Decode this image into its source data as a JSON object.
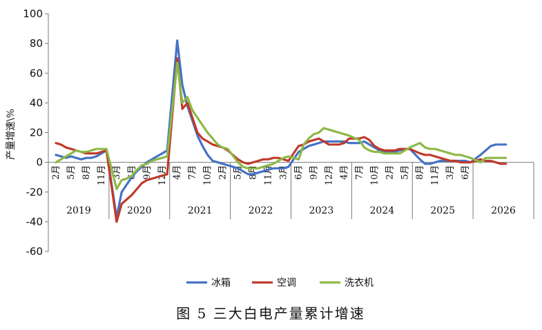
{
  "chart_data": {
    "type": "line",
    "title": "",
    "caption": "图 5  三大白电产量累计增速",
    "ylabel": "产量增速\\%",
    "ylim": [
      -60,
      100
    ],
    "yticks": [
      "-60",
      "-40",
      "-20",
      "0",
      "20",
      "40",
      "60",
      "80",
      "100"
    ],
    "month_ticks": [
      "2月",
      "5月",
      "8月",
      "11月",
      "3月",
      "6月",
      "9月",
      "12月",
      "4月",
      "7月",
      "10月",
      "2月",
      "5月",
      "8月",
      "11月",
      "3月",
      "6月",
      "9月",
      "12月",
      "4月",
      "7月",
      "10月",
      "2月",
      "5月",
      "8月",
      "11月",
      "3月",
      "6月"
    ],
    "years": [
      "2019",
      "2020",
      "2021",
      "2022",
      "2023",
      "2024",
      "2025",
      "2026"
    ],
    "legend_position": "bottom",
    "grid": false,
    "series": [
      {
        "name": "冰箱",
        "color": "#4472C4",
        "values": [
          [
            "2019-02",
            5
          ],
          [
            "2019-03",
            4
          ],
          [
            "2019-04",
            3
          ],
          [
            "2019-05",
            4
          ],
          [
            "2019-06",
            3
          ],
          [
            "2019-07",
            2
          ],
          [
            "2019-08",
            3
          ],
          [
            "2019-09",
            3
          ],
          [
            "2019-10",
            4
          ],
          [
            "2019-11",
            6
          ],
          [
            "2019-12",
            8
          ],
          [
            "2020-02",
            -37
          ],
          [
            "2020-03",
            -20
          ],
          [
            "2020-04",
            -15
          ],
          [
            "2020-05",
            -10
          ],
          [
            "2020-06",
            -6
          ],
          [
            "2020-07",
            -3
          ],
          [
            "2020-08",
            0
          ],
          [
            "2020-09",
            2
          ],
          [
            "2020-10",
            4
          ],
          [
            "2020-11",
            6
          ],
          [
            "2020-12",
            8
          ],
          [
            "2021-02",
            82
          ],
          [
            "2021-03",
            52
          ],
          [
            "2021-04",
            38
          ],
          [
            "2021-05",
            28
          ],
          [
            "2021-06",
            18
          ],
          [
            "2021-07",
            11
          ],
          [
            "2021-08",
            5
          ],
          [
            "2021-09",
            1
          ],
          [
            "2021-10",
            0
          ],
          [
            "2021-11",
            -1
          ],
          [
            "2021-12",
            -2
          ],
          [
            "2022-02",
            -4
          ],
          [
            "2022-03",
            -6
          ],
          [
            "2022-04",
            -8
          ],
          [
            "2022-05",
            -8
          ],
          [
            "2022-06",
            -7
          ],
          [
            "2022-07",
            -6
          ],
          [
            "2022-08",
            -5
          ],
          [
            "2022-09",
            -4
          ],
          [
            "2022-10",
            -4
          ],
          [
            "2022-11",
            -4
          ],
          [
            "2022-12",
            -3
          ],
          [
            "2023-02",
            7
          ],
          [
            "2023-03",
            9
          ],
          [
            "2023-04",
            11
          ],
          [
            "2023-05",
            12
          ],
          [
            "2023-06",
            13
          ],
          [
            "2023-07",
            14
          ],
          [
            "2023-08",
            14
          ],
          [
            "2023-09",
            14
          ],
          [
            "2023-10",
            14
          ],
          [
            "2023-11",
            14
          ],
          [
            "2023-12",
            13
          ],
          [
            "2024-02",
            13
          ],
          [
            "2024-03",
            14
          ],
          [
            "2024-04",
            12
          ],
          [
            "2024-05",
            10
          ],
          [
            "2024-06",
            8
          ],
          [
            "2024-07",
            7
          ],
          [
            "2024-08",
            7
          ],
          [
            "2024-09",
            7
          ],
          [
            "2024-10",
            8
          ],
          [
            "2024-11",
            9
          ],
          [
            "2024-12",
            9
          ],
          [
            "2025-02",
            2
          ],
          [
            "2025-03",
            -1
          ],
          [
            "2025-04",
            -1
          ],
          [
            "2025-05",
            0
          ],
          [
            "2025-06",
            1
          ],
          [
            "2025-07",
            1
          ],
          [
            "2025-08",
            1
          ],
          [
            "2025-09",
            1
          ],
          [
            "2025-10",
            1
          ],
          [
            "2025-11",
            1
          ],
          [
            "2025-12",
            0
          ],
          [
            "2026-02",
            5
          ],
          [
            "2026-03",
            8
          ],
          [
            "2026-04",
            11
          ],
          [
            "2026-05",
            12
          ],
          [
            "2026-06",
            12
          ],
          [
            "2026-07",
            12
          ]
        ]
      },
      {
        "name": "空调",
        "color": "#C0392B",
        "values": [
          [
            "2019-02",
            13
          ],
          [
            "2019-03",
            12
          ],
          [
            "2019-04",
            10
          ],
          [
            "2019-05",
            9
          ],
          [
            "2019-06",
            8
          ],
          [
            "2019-07",
            7
          ],
          [
            "2019-08",
            6
          ],
          [
            "2019-09",
            6
          ],
          [
            "2019-10",
            6
          ],
          [
            "2019-11",
            7
          ],
          [
            "2019-12",
            8
          ],
          [
            "2020-02",
            -40
          ],
          [
            "2020-03",
            -28
          ],
          [
            "2020-04",
            -25
          ],
          [
            "2020-05",
            -22
          ],
          [
            "2020-06",
            -18
          ],
          [
            "2020-07",
            -14
          ],
          [
            "2020-08",
            -12
          ],
          [
            "2020-09",
            -11
          ],
          [
            "2020-10",
            -10
          ],
          [
            "2020-11",
            -9
          ],
          [
            "2020-12",
            -8
          ],
          [
            "2021-02",
            70
          ],
          [
            "2021-03",
            36
          ],
          [
            "2021-04",
            40
          ],
          [
            "2021-05",
            30
          ],
          [
            "2021-06",
            20
          ],
          [
            "2021-07",
            16
          ],
          [
            "2021-08",
            14
          ],
          [
            "2021-09",
            12
          ],
          [
            "2021-10",
            11
          ],
          [
            "2021-11",
            10
          ],
          [
            "2021-12",
            8
          ],
          [
            "2022-02",
            2
          ],
          [
            "2022-03",
            0
          ],
          [
            "2022-04",
            -1
          ],
          [
            "2022-05",
            0
          ],
          [
            "2022-06",
            1
          ],
          [
            "2022-07",
            2
          ],
          [
            "2022-08",
            2
          ],
          [
            "2022-09",
            3
          ],
          [
            "2022-10",
            3
          ],
          [
            "2022-11",
            2
          ],
          [
            "2022-12",
            1
          ],
          [
            "2023-02",
            11
          ],
          [
            "2023-03",
            12
          ],
          [
            "2023-04",
            14
          ],
          [
            "2023-05",
            15
          ],
          [
            "2023-06",
            16
          ],
          [
            "2023-07",
            14
          ],
          [
            "2023-08",
            12
          ],
          [
            "2023-09",
            12
          ],
          [
            "2023-10",
            12
          ],
          [
            "2023-11",
            13
          ],
          [
            "2023-12",
            16
          ],
          [
            "2024-02",
            16
          ],
          [
            "2024-03",
            17
          ],
          [
            "2024-04",
            15
          ],
          [
            "2024-05",
            11
          ],
          [
            "2024-06",
            9
          ],
          [
            "2024-07",
            8
          ],
          [
            "2024-08",
            8
          ],
          [
            "2024-09",
            8
          ],
          [
            "2024-10",
            9
          ],
          [
            "2024-11",
            9
          ],
          [
            "2024-12",
            9
          ],
          [
            "2025-02",
            6
          ],
          [
            "2025-03",
            5
          ],
          [
            "2025-04",
            5
          ],
          [
            "2025-05",
            4
          ],
          [
            "2025-06",
            3
          ],
          [
            "2025-07",
            2
          ],
          [
            "2025-08",
            1
          ],
          [
            "2025-09",
            1
          ],
          [
            "2025-10",
            0
          ],
          [
            "2025-11",
            0
          ],
          [
            "2025-12",
            0
          ],
          [
            "2026-02",
            2
          ],
          [
            "2026-03",
            1
          ],
          [
            "2026-04",
            1
          ],
          [
            "2026-05",
            0
          ],
          [
            "2026-06",
            -1
          ],
          [
            "2026-07",
            -1
          ]
        ]
      },
      {
        "name": "洗衣机",
        "color": "#8DB846",
        "values": [
          [
            "2019-02",
            0
          ],
          [
            "2019-03",
            2
          ],
          [
            "2019-04",
            4
          ],
          [
            "2019-05",
            6
          ],
          [
            "2019-06",
            8
          ],
          [
            "2019-07",
            7
          ],
          [
            "2019-08",
            7
          ],
          [
            "2019-09",
            8
          ],
          [
            "2019-10",
            9
          ],
          [
            "2019-11",
            9
          ],
          [
            "2019-12",
            9
          ],
          [
            "2020-02",
            -18
          ],
          [
            "2020-03",
            -12
          ],
          [
            "2020-04",
            -11
          ],
          [
            "2020-05",
            -9
          ],
          [
            "2020-06",
            -5
          ],
          [
            "2020-07",
            -2
          ],
          [
            "2020-08",
            -1
          ],
          [
            "2020-09",
            1
          ],
          [
            "2020-10",
            2
          ],
          [
            "2020-11",
            3
          ],
          [
            "2020-12",
            4
          ],
          [
            "2021-02",
            67
          ],
          [
            "2021-03",
            40
          ],
          [
            "2021-04",
            44
          ],
          [
            "2021-05",
            35
          ],
          [
            "2021-06",
            30
          ],
          [
            "2021-07",
            25
          ],
          [
            "2021-08",
            20
          ],
          [
            "2021-09",
            16
          ],
          [
            "2021-10",
            12
          ],
          [
            "2021-11",
            10
          ],
          [
            "2021-12",
            9
          ],
          [
            "2022-02",
            0
          ],
          [
            "2022-03",
            -3
          ],
          [
            "2022-04",
            -4
          ],
          [
            "2022-05",
            -4
          ],
          [
            "2022-06",
            -4
          ],
          [
            "2022-07",
            -3
          ],
          [
            "2022-08",
            -2
          ],
          [
            "2022-09",
            -1
          ],
          [
            "2022-10",
            1
          ],
          [
            "2022-11",
            3
          ],
          [
            "2022-12",
            4
          ],
          [
            "2023-02",
            2
          ],
          [
            "2023-03",
            12
          ],
          [
            "2023-04",
            16
          ],
          [
            "2023-05",
            19
          ],
          [
            "2023-06",
            20
          ],
          [
            "2023-07",
            23
          ],
          [
            "2023-08",
            22
          ],
          [
            "2023-09",
            21
          ],
          [
            "2023-10",
            20
          ],
          [
            "2023-11",
            19
          ],
          [
            "2023-12",
            18
          ],
          [
            "2024-02",
            15
          ],
          [
            "2024-03",
            10
          ],
          [
            "2024-04",
            8
          ],
          [
            "2024-05",
            7
          ],
          [
            "2024-06",
            7
          ],
          [
            "2024-07",
            6
          ],
          [
            "2024-08",
            6
          ],
          [
            "2024-09",
            6
          ],
          [
            "2024-10",
            6
          ],
          [
            "2024-11",
            8
          ],
          [
            "2024-12",
            10
          ],
          [
            "2025-02",
            13
          ],
          [
            "2025-03",
            10
          ],
          [
            "2025-04",
            9
          ],
          [
            "2025-05",
            9
          ],
          [
            "2025-06",
            8
          ],
          [
            "2025-07",
            7
          ],
          [
            "2025-08",
            6
          ],
          [
            "2025-09",
            5
          ],
          [
            "2025-10",
            5
          ],
          [
            "2025-11",
            4
          ],
          [
            "2025-12",
            3
          ],
          [
            "2026-02",
            0
          ],
          [
            "2026-03",
            3
          ],
          [
            "2026-04",
            3
          ],
          [
            "2026-05",
            3
          ],
          [
            "2026-06",
            3
          ],
          [
            "2026-07",
            3
          ]
        ]
      }
    ]
  }
}
